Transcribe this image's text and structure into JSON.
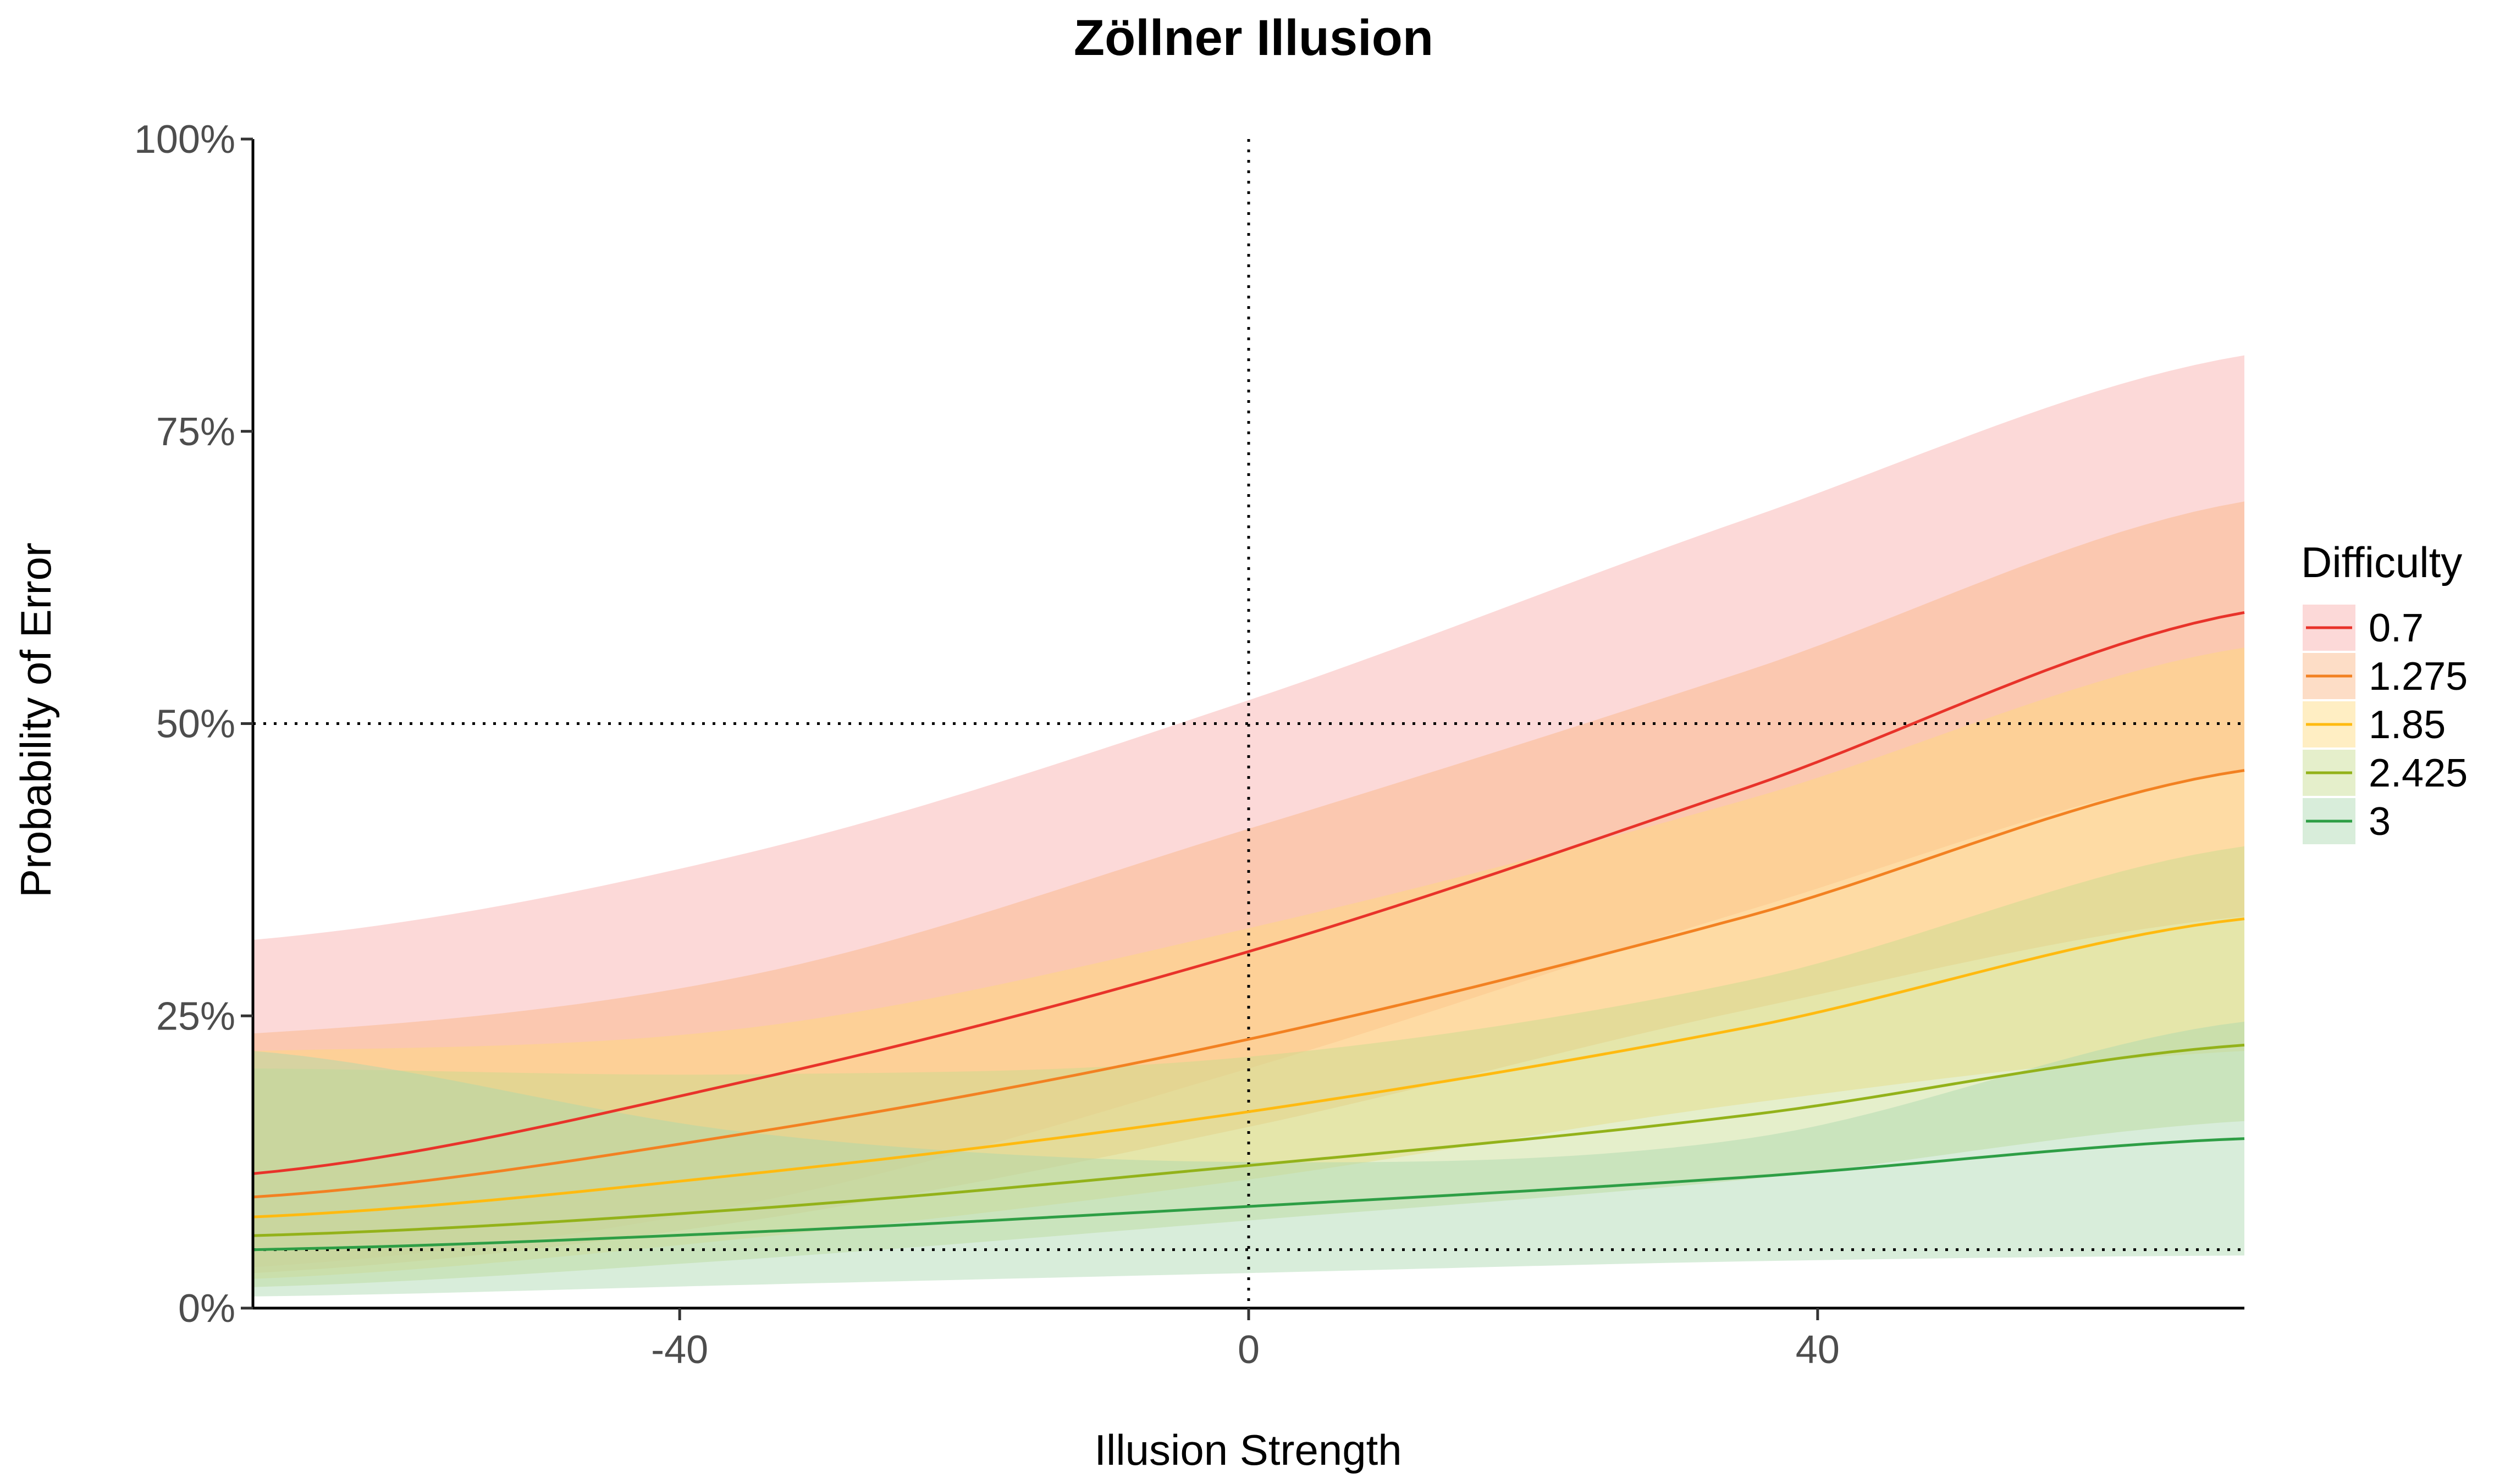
{
  "chart_data": {
    "type": "line",
    "title": "Zöllner Illusion",
    "xlabel": "Illusion Strength",
    "ylabel": "Probability of Error",
    "xlim": [
      -70,
      70
    ],
    "ylim": [
      0,
      1
    ],
    "x_ticks": [
      {
        "value": -40,
        "label": "-40"
      },
      {
        "value": 0,
        "label": "0"
      },
      {
        "value": 40,
        "label": "40"
      }
    ],
    "y_ticks": [
      {
        "value": 0,
        "label": "0%"
      },
      {
        "value": 0.25,
        "label": "25%"
      },
      {
        "value": 0.5,
        "label": "50%"
      },
      {
        "value": 0.75,
        "label": "75%"
      },
      {
        "value": 1,
        "label": "100%"
      }
    ],
    "reference_lines": {
      "vertical_x": [
        0
      ],
      "horizontal_y": [
        0.5,
        0.05
      ],
      "style": "dotted"
    },
    "grid": false,
    "legend": {
      "title": "Difficulty",
      "position": "right"
    },
    "x": [
      -70,
      -35,
      0,
      35,
      70
    ],
    "series": [
      {
        "name": "0.7",
        "color": "#E8332A",
        "band_color": "#F8AAA8",
        "values": [
          0.115,
          0.195,
          0.305,
          0.445,
          0.595
        ],
        "lower": [
          0.035,
          0.09,
          0.205,
          0.34,
          0.46
        ],
        "upper": [
          0.315,
          0.39,
          0.52,
          0.675,
          0.815
        ]
      },
      {
        "name": "1.275",
        "color": "#F28122",
        "band_color": "#FBB481",
        "values": [
          0.095,
          0.15,
          0.23,
          0.335,
          0.46
        ],
        "lower": [
          0.03,
          0.075,
          0.155,
          0.255,
          0.335
        ],
        "upper": [
          0.235,
          0.285,
          0.41,
          0.545,
          0.69
        ]
      },
      {
        "name": "1.85",
        "color": "#FFBA10",
        "band_color": "#FFD97A",
        "values": [
          0.078,
          0.115,
          0.168,
          0.24,
          0.333
        ],
        "lower": [
          0.025,
          0.06,
          0.11,
          0.175,
          0.22
        ],
        "upper": [
          0.22,
          0.24,
          0.325,
          0.435,
          0.565
        ]
      },
      {
        "name": "2.425",
        "color": "#93B21A",
        "band_color": "#C6DC8C",
        "values": [
          0.062,
          0.085,
          0.122,
          0.165,
          0.225
        ],
        "lower": [
          0.018,
          0.042,
          0.075,
          0.11,
          0.16
        ],
        "upper": [
          0.205,
          0.2,
          0.215,
          0.28,
          0.395
        ]
      },
      {
        "name": "3",
        "color": "#2E9E45",
        "band_color": "#A8D8AE",
        "values": [
          0.05,
          0.065,
          0.087,
          0.112,
          0.145
        ],
        "lower": [
          0.01,
          0.02,
          0.03,
          0.04,
          0.045
        ],
        "upper": [
          0.22,
          0.15,
          0.125,
          0.145,
          0.245
        ]
      }
    ]
  }
}
